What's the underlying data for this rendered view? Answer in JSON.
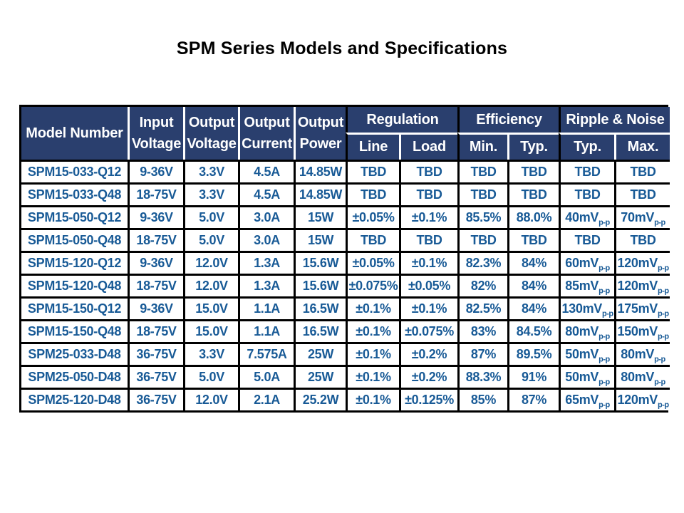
{
  "title": "SPM Series Models and Specifications",
  "colors": {
    "header_bg": "#2a3f6e",
    "header_text": "#ffffff",
    "cell_text": "#185a96",
    "border_black": "#000000",
    "header_divider_white": "#ffffff",
    "title_color": "#000000",
    "page_bg": "#ffffff"
  },
  "table": {
    "single_columns": [
      {
        "name": "model-number",
        "label_lines": [
          "Model Number"
        ]
      },
      {
        "name": "input-voltage",
        "label_lines": [
          "Input",
          "Voltage"
        ]
      },
      {
        "name": "output-voltage",
        "label_lines": [
          "Output",
          "Voltage"
        ]
      },
      {
        "name": "output-current",
        "label_lines": [
          "Output",
          "Current"
        ]
      },
      {
        "name": "output-power",
        "label_lines": [
          "Output",
          "Power"
        ]
      }
    ],
    "groups": [
      {
        "name": "regulation",
        "label": "Regulation",
        "subs": [
          "Line",
          "Load"
        ]
      },
      {
        "name": "efficiency",
        "label": "Efficiency",
        "subs": [
          "Min.",
          "Typ."
        ]
      },
      {
        "name": "ripple-noise",
        "label": "Ripple & Noise",
        "subs": [
          "Typ.",
          "Max."
        ]
      }
    ],
    "rows": [
      [
        "SPM15-033-Q12",
        "9-36V",
        "3.3V",
        "4.5A",
        "14.85W",
        "TBD",
        "TBD",
        "TBD",
        "TBD",
        "TBD",
        "TBD"
      ],
      [
        "SPM15-033-Q48",
        "18-75V",
        "3.3V",
        "4.5A",
        "14.85W",
        "TBD",
        "TBD",
        "TBD",
        "TBD",
        "TBD",
        "TBD"
      ],
      [
        "SPM15-050-Q12",
        "9-36V",
        "5.0V",
        "3.0A",
        "15W",
        "±0.05%",
        "±0.1%",
        "85.5%",
        "88.0%",
        {
          "t": "40mV",
          "sub": "p-p"
        },
        {
          "t": "70mV",
          "sub": "p-p"
        }
      ],
      [
        "SPM15-050-Q48",
        "18-75V",
        "5.0V",
        "3.0A",
        "15W",
        "TBD",
        "TBD",
        "TBD",
        "TBD",
        "TBD",
        "TBD"
      ],
      [
        "SPM15-120-Q12",
        "9-36V",
        "12.0V",
        "1.3A",
        "15.6W",
        "±0.05%",
        "±0.1%",
        "82.3%",
        "84%",
        {
          "t": "60mV",
          "sub": "p-p"
        },
        {
          "t": "120mV",
          "sub": "p-p"
        }
      ],
      [
        "SPM15-120-Q48",
        "18-75V",
        "12.0V",
        "1.3A",
        "15.6W",
        "±0.075%",
        "±0.05%",
        "82%",
        "84%",
        {
          "t": "85mV",
          "sub": "p-p"
        },
        {
          "t": "120mV",
          "sub": "p-p"
        }
      ],
      [
        "SPM15-150-Q12",
        "9-36V",
        "15.0V",
        "1.1A",
        "16.5W",
        "±0.1%",
        "±0.1%",
        "82.5%",
        "84%",
        {
          "t": "130mV",
          "sub": "p-p"
        },
        {
          "t": "175mV",
          "sub": "p-p"
        }
      ],
      [
        "SPM15-150-Q48",
        "18-75V",
        "15.0V",
        "1.1A",
        "16.5W",
        "±0.1%",
        "±0.075%",
        "83%",
        "84.5%",
        {
          "t": "80mV",
          "sub": "p-p"
        },
        {
          "t": "150mV",
          "sub": "p-p"
        }
      ],
      [
        "SPM25-033-D48",
        "36-75V",
        "3.3V",
        "7.575A",
        "25W",
        "±0.1%",
        "±0.2%",
        "87%",
        "89.5%",
        {
          "t": "50mV",
          "sub": "p-p"
        },
        {
          "t": "80mV",
          "sub": "p-p"
        }
      ],
      [
        "SPM25-050-D48",
        "36-75V",
        "5.0V",
        "5.0A",
        "25W",
        "±0.1%",
        "±0.2%",
        "88.3%",
        "91%",
        {
          "t": "50mV",
          "sub": "p-p"
        },
        {
          "t": "80mV",
          "sub": "p-p"
        }
      ],
      [
        "SPM25-120-D48",
        "36-75V",
        "12.0V",
        "2.1A",
        "25.2W",
        "±0.1%",
        "±0.125%",
        "85%",
        "87%",
        {
          "t": "65mV",
          "sub": "p-p"
        },
        {
          "t": "120mV",
          "sub": "p-p"
        }
      ]
    ]
  }
}
